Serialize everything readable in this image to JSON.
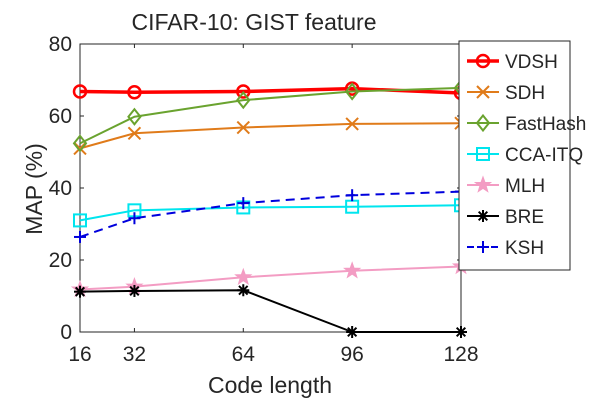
{
  "chart_data": {
    "type": "line",
    "title": "CIFAR-10: GIST feature",
    "xlabel": "Code length",
    "ylabel": "MAP (%)",
    "x": [
      16,
      32,
      64,
      96,
      128
    ],
    "xlim": [
      16,
      128
    ],
    "ylim": [
      0,
      80
    ],
    "xticks": [
      16,
      32,
      64,
      96,
      128
    ],
    "yticks": [
      0,
      20,
      40,
      60,
      80
    ],
    "grid": false,
    "legend_position": "outside-right",
    "series": [
      {
        "name": "VDSH",
        "color": "#ff0000",
        "marker": "circle",
        "dash": "solid",
        "width": 3.5,
        "values": [
          66.8,
          66.6,
          66.8,
          67.6,
          66.4
        ]
      },
      {
        "name": "SDH",
        "color": "#e07b1a",
        "marker": "x",
        "dash": "solid",
        "width": 2,
        "values": [
          51.0,
          55.2,
          56.8,
          57.8,
          58.0
        ]
      },
      {
        "name": "FastHash",
        "color": "#6aa32f",
        "marker": "diamond",
        "dash": "solid",
        "width": 2,
        "values": [
          52.4,
          59.8,
          64.4,
          66.8,
          67.8
        ]
      },
      {
        "name": "CCA-ITQ",
        "color": "#00e5ee",
        "marker": "square",
        "dash": "solid",
        "width": 2,
        "values": [
          31.0,
          33.8,
          34.6,
          34.8,
          35.2
        ]
      },
      {
        "name": "MLH",
        "color": "#f39cc3",
        "marker": "star",
        "dash": "solid",
        "width": 2,
        "values": [
          11.8,
          12.6,
          15.2,
          17.0,
          18.2
        ]
      },
      {
        "name": "BRE",
        "color": "#000000",
        "marker": "asterisk",
        "dash": "solid",
        "width": 2,
        "values": [
          11.2,
          11.4,
          11.6,
          0.0,
          0.0
        ]
      },
      {
        "name": "KSH",
        "color": "#0000dd",
        "marker": "plus",
        "dash": "dashed",
        "width": 2,
        "values": [
          26.4,
          31.6,
          35.8,
          38.0,
          39.0
        ]
      }
    ]
  }
}
